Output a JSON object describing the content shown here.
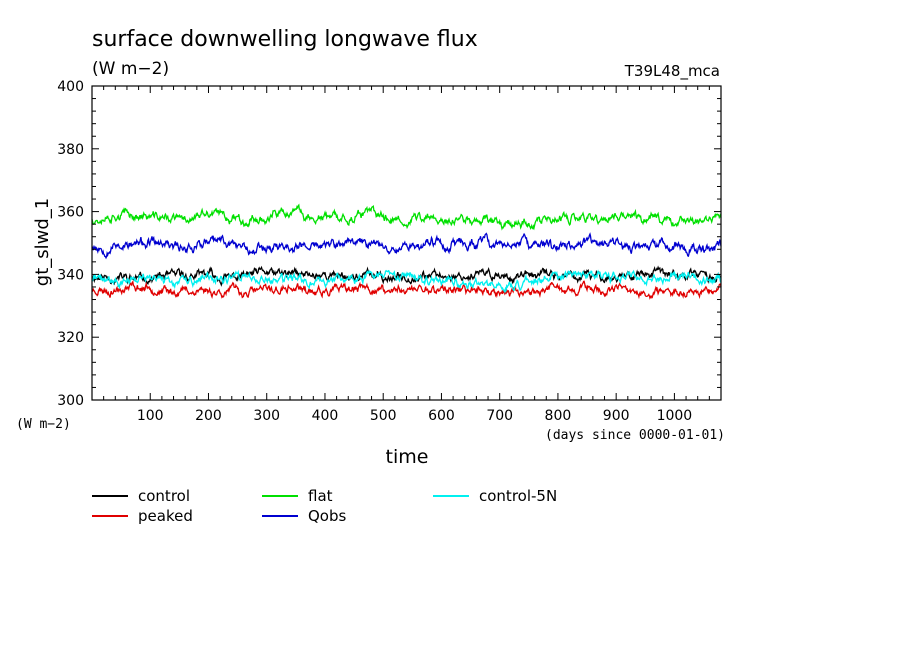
{
  "chart_data": {
    "type": "line",
    "title": "surface downwelling longwave flux",
    "units": "(W m−2)",
    "experiment": "T39L48_mca",
    "ylabel": "gt_slwd_1",
    "yunits": "(W m−2)",
    "xlabel": "time",
    "xunits": "(days since 0000-01-01)",
    "xlim": [
      0,
      1080
    ],
    "ylim": [
      300,
      400
    ],
    "x_ticks": [
      100,
      200,
      300,
      400,
      500,
      600,
      700,
      800,
      900,
      1000
    ],
    "y_ticks": [
      300,
      320,
      340,
      360,
      380,
      400
    ],
    "grid": false,
    "legend_position": "bottom",
    "series": [
      {
        "name": "control",
        "color": "#000000",
        "mean": 339.5,
        "amp": 1.5,
        "seed": 11
      },
      {
        "name": "peaked",
        "color": "#e00000",
        "mean": 335.0,
        "amp": 1.5,
        "seed": 23
      },
      {
        "name": "flat",
        "color": "#00e000",
        "mean": 358.0,
        "amp": 1.6,
        "seed": 37
      },
      {
        "name": "Qobs",
        "color": "#0000d0",
        "mean": 349.5,
        "amp": 1.7,
        "seed": 53
      },
      {
        "name": "control-5N",
        "color": "#00f0f0",
        "mean": 338.5,
        "amp": 1.5,
        "seed": 71
      }
    ]
  }
}
